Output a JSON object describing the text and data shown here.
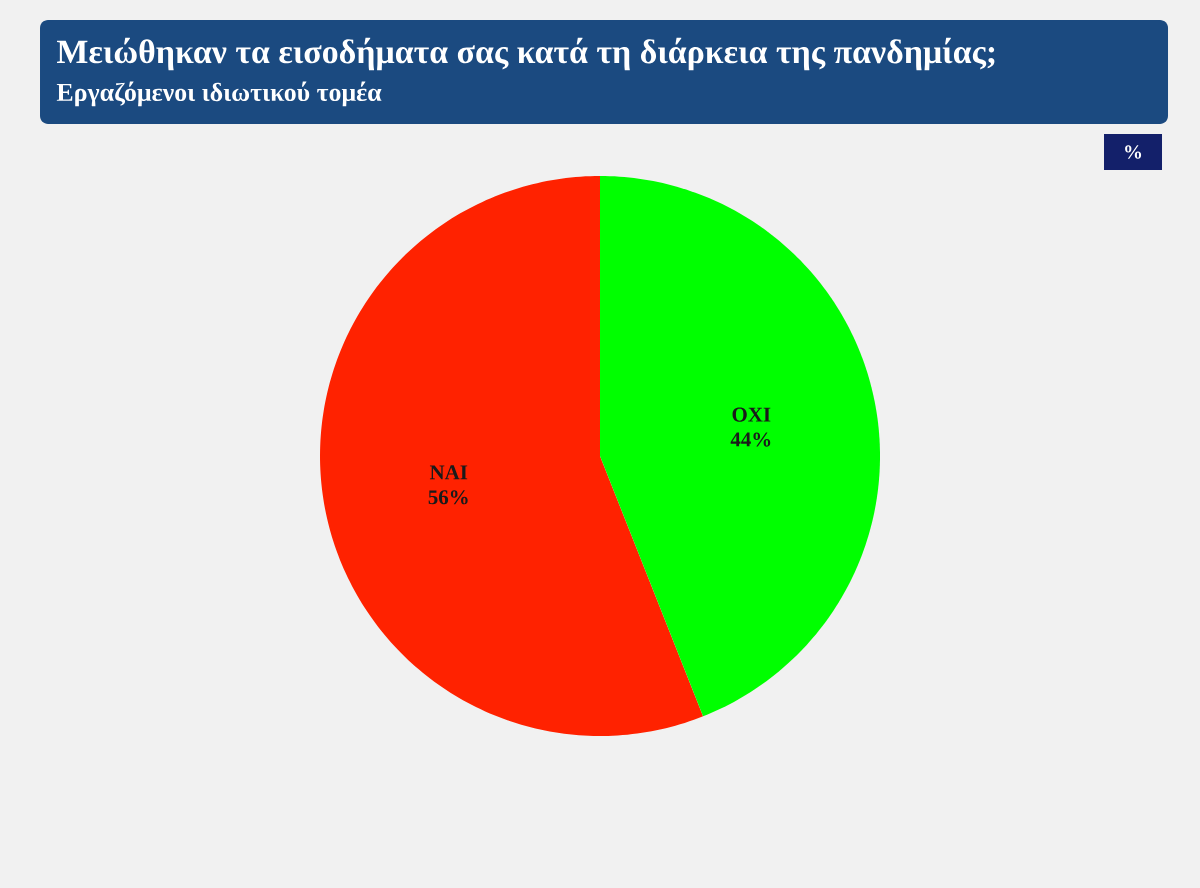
{
  "chart_data": {
    "type": "pie",
    "title": "Μειώθηκαν τα εισοδήματα σας κατά τη διάρκεια της πανδημίας;",
    "subtitle": "Εργαζόμενοι ιδιωτικού τομέα",
    "categories": [
      "ΝΑΙ",
      "ΟΧΙ"
    ],
    "values": [
      56,
      44
    ],
    "colors": [
      "#ff2200",
      "#00ff00"
    ],
    "value_labels": [
      "56%",
      "44%"
    ],
    "annotations": [
      "%"
    ]
  }
}
